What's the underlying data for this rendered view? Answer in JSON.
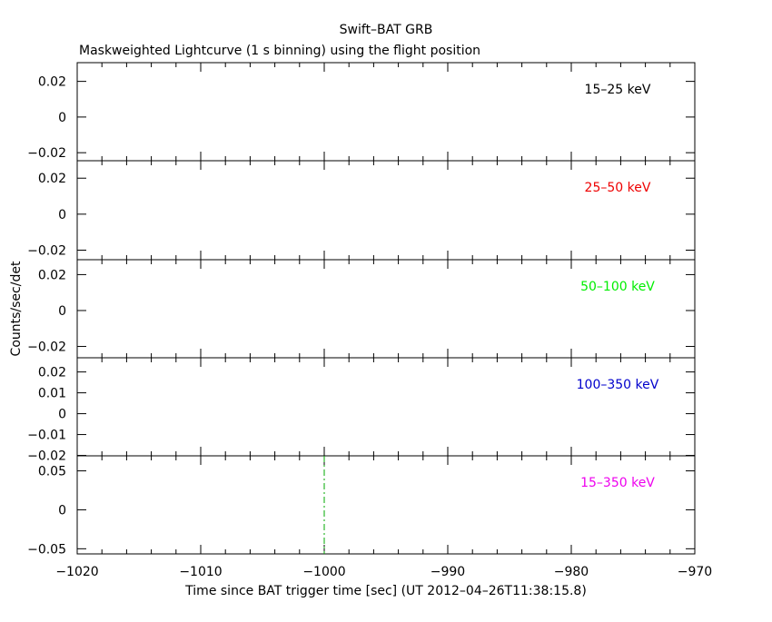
{
  "title": "Swift–BAT GRB",
  "subtitle": "Maskweighted Lightcurve (1 s binning) using the flight position",
  "ylabel": "Counts/sec/det",
  "xlabel": "Time since BAT trigger time [sec] (UT 2012–04–26T11:38:15.8)",
  "colors": {
    "axis": "#000000",
    "marker": "#00aa00"
  },
  "chart_data": [
    {
      "type": "line",
      "band": "15–25 keV",
      "band_color": "#000000",
      "xlim": [
        -1020,
        -970
      ],
      "ylim": [
        -0.0245,
        0.0305
      ],
      "yticks": [
        {
          "value": 0.02,
          "label": "0.02"
        },
        {
          "value": 0,
          "label": "0"
        },
        {
          "value": -0.02,
          "label": "−0.02"
        }
      ],
      "x": [],
      "y": []
    },
    {
      "type": "line",
      "band": "25–50 keV",
      "band_color": "#ee0000",
      "xlim": [
        -1020,
        -970
      ],
      "ylim": [
        -0.0253,
        0.0297
      ],
      "yticks": [
        {
          "value": 0.02,
          "label": "0.02"
        },
        {
          "value": 0,
          "label": "0"
        },
        {
          "value": -0.02,
          "label": "−0.02"
        }
      ],
      "x": [],
      "y": []
    },
    {
      "type": "line",
      "band": "50–100 keV",
      "band_color": "#00ee00",
      "xlim": [
        -1020,
        -970
      ],
      "ylim": [
        -0.0263,
        0.0283
      ],
      "yticks": [
        {
          "value": 0.02,
          "label": "0.02"
        },
        {
          "value": 0,
          "label": "0"
        },
        {
          "value": -0.02,
          "label": "−0.02"
        }
      ],
      "x": [],
      "y": []
    },
    {
      "type": "line",
      "band": "100–350 keV",
      "band_color": "#0000cc",
      "xlim": [
        -1020,
        -970
      ],
      "ylim": [
        -0.0202,
        0.0268
      ],
      "yticks": [
        {
          "value": 0.02,
          "label": "0.02"
        },
        {
          "value": 0.01,
          "label": "0.01"
        },
        {
          "value": 0,
          "label": "0"
        },
        {
          "value": -0.01,
          "label": "−0.01"
        },
        {
          "value": -0.02,
          "label": "−0.02"
        }
      ],
      "x": [],
      "y": []
    },
    {
      "type": "line",
      "band": "15–350 keV",
      "band_color": "#ee00ee",
      "xlim": [
        -1020,
        -970
      ],
      "ylim": [
        -0.0566,
        0.0693
      ],
      "yticks": [
        {
          "value": 0.05,
          "label": "0.05"
        },
        {
          "value": 0,
          "label": "0"
        },
        {
          "value": -0.05,
          "label": "−0.05"
        }
      ],
      "x": [],
      "y": [],
      "annotations": [
        {
          "type": "vline",
          "x": -1000,
          "style": "dash-dot",
          "color": "#00aa00"
        }
      ]
    }
  ],
  "x_axis": {
    "xlim": [
      -1020,
      -970
    ],
    "ticks": [
      {
        "value": -1020,
        "label": "−1020"
      },
      {
        "value": -1010,
        "label": "−1010"
      },
      {
        "value": -1000,
        "label": "−1000"
      },
      {
        "value": -990,
        "label": "−990"
      },
      {
        "value": -980,
        "label": "−980"
      },
      {
        "value": -970,
        "label": "−970"
      }
    ],
    "minor_step": 2
  }
}
